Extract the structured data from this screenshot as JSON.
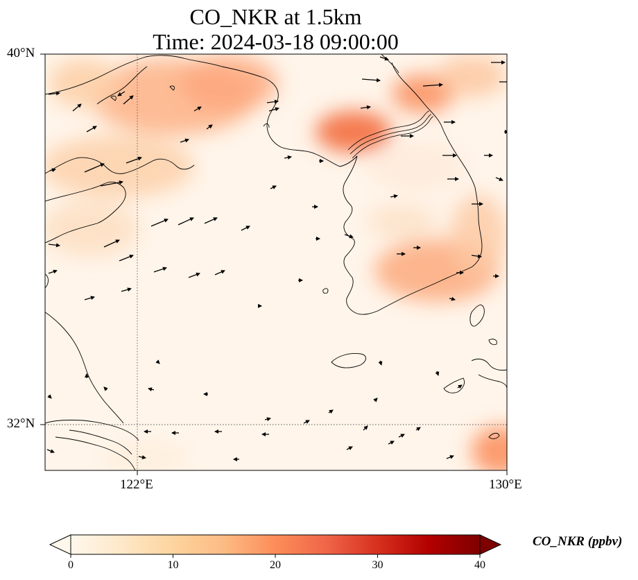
{
  "title": {
    "line1": "CO_NKR at 1.5km",
    "line2": "Time: 2024-03-18 09:00:00"
  },
  "axes": {
    "lat_ticks": [
      "40°N",
      "32°N"
    ],
    "lon_ticks": [
      "122°E",
      "130°E"
    ],
    "lat_range": [
      31,
      40
    ],
    "lon_range": [
      120,
      130
    ],
    "gridlines": "dotted at 122°E and 32°N"
  },
  "colorbar": {
    "label": "CO_NKR (ppbv)",
    "ticks": [
      "0",
      "10",
      "20",
      "30",
      "40"
    ],
    "range": [
      0,
      40
    ],
    "colormap": "OrRd",
    "extend": "both",
    "colors": [
      "#fff7ec",
      "#fee8c8",
      "#fdd49e",
      "#fdbb84",
      "#fc8d59",
      "#ef6548",
      "#d7301f",
      "#b30000",
      "#7f0000"
    ]
  },
  "wind_vectors_note": "",
  "features": {
    "coastlines": "China, Shandong, Korean Peninsula, Jeju, Kyushu",
    "border": "North/South Korea"
  }
}
